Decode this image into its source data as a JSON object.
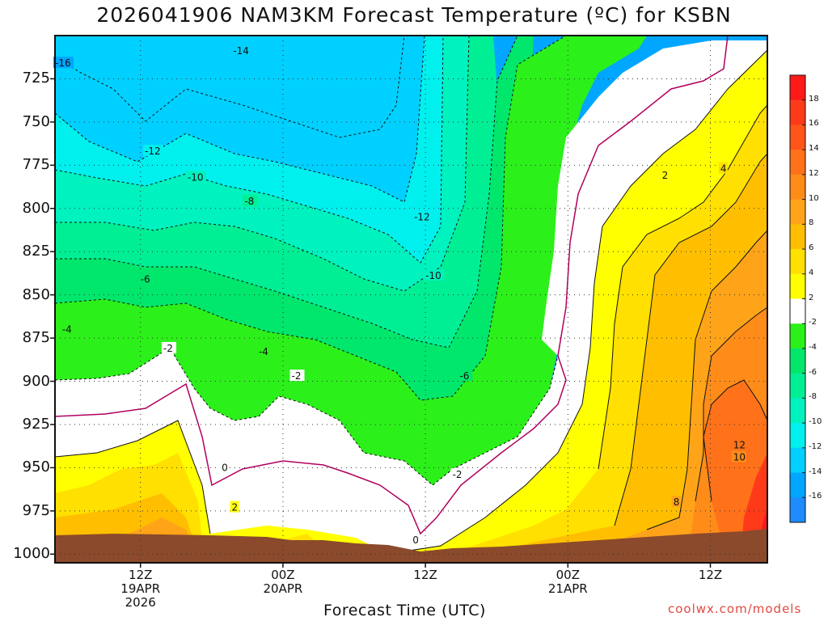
{
  "title": "2026041906 NAM3KM Forecast Temperature (ºC) for KSBN",
  "xlabel": "Forecast Time (UTC)",
  "credit": "coolwx.com/models",
  "colors": {
    "ground": "#8b4a2b",
    "freezing_line": "#b0005f",
    "contour_line": "#111111",
    "grid": "#333333"
  },
  "chart_data": {
    "type": "heatmap",
    "title": "2026041906 NAM3KM Forecast Temperature (ºC) for KSBN",
    "xlabel": "Forecast Time (UTC)",
    "ylabel": "",
    "x_range_hours": [
      -6,
      44
    ],
    "x_ticks": [
      {
        "hour": 0,
        "lines": [
          "12Z",
          "19APR",
          "2026"
        ]
      },
      {
        "hour": 10,
        "lines": [
          "00Z",
          "20APR"
        ]
      },
      {
        "hour": 20,
        "lines": [
          "12Z"
        ]
      },
      {
        "hour": 30,
        "lines": [
          "00Z",
          "21APR"
        ]
      },
      {
        "hour": 40,
        "lines": [
          "12Z"
        ]
      }
    ],
    "y_axis": "pressure (hPa), inverted",
    "y_range": [
      1005,
      700
    ],
    "y_ticks": [
      725,
      750,
      775,
      800,
      825,
      850,
      875,
      900,
      925,
      950,
      975,
      1000
    ],
    "grid": true,
    "colorbar": {
      "position": "right",
      "levels": [
        -16,
        -14,
        -12,
        -10,
        -8,
        -6,
        -4,
        -2,
        2,
        4,
        6,
        8,
        10,
        12,
        14,
        16,
        18
      ],
      "bins": [
        {
          "low": null,
          "high": -16,
          "color": "#1e8cff"
        },
        {
          "low": -16,
          "high": -14,
          "color": "#00a6ff"
        },
        {
          "low": -14,
          "high": -12,
          "color": "#00d0ff"
        },
        {
          "low": -12,
          "high": -10,
          "color": "#00f0ee"
        },
        {
          "low": -10,
          "high": -8,
          "color": "#00f2be"
        },
        {
          "low": -8,
          "high": -6,
          "color": "#00ef94"
        },
        {
          "low": -6,
          "high": -4,
          "color": "#00e76c"
        },
        {
          "low": -4,
          "high": -2,
          "color": "#2cf01a"
        },
        {
          "low": -2,
          "high": 2,
          "color": "#ffffff"
        },
        {
          "low": 2,
          "high": 4,
          "color": "#ffff00"
        },
        {
          "low": 4,
          "high": 6,
          "color": "#ffe000"
        },
        {
          "low": 6,
          "high": 8,
          "color": "#ffbf00"
        },
        {
          "low": 8,
          "high": 10,
          "color": "#ffa419"
        },
        {
          "low": 10,
          "high": 12,
          "color": "#ff8c19"
        },
        {
          "low": 12,
          "high": 14,
          "color": "#ff7219"
        },
        {
          "low": 14,
          "high": 16,
          "color": "#ff5519"
        },
        {
          "low": 16,
          "high": 18,
          "color": "#ff3a19"
        },
        {
          "low": 18,
          "high": null,
          "color": "#ff1a1a"
        }
      ]
    },
    "contour_labels": [
      {
        "value": -16,
        "hour": -6.0,
        "p": 716
      },
      {
        "value": -14,
        "hour": 6.5,
        "p": 709
      },
      {
        "value": -12,
        "hour": 0.3,
        "p": 767
      },
      {
        "value": -12,
        "hour": 19.2,
        "p": 805
      },
      {
        "value": -10,
        "hour": 3.3,
        "p": 782
      },
      {
        "value": -10,
        "hour": 20.0,
        "p": 839
      },
      {
        "value": -8,
        "hour": 7.3,
        "p": 796
      },
      {
        "value": -6,
        "hour": 0.0,
        "p": 841
      },
      {
        "value": -6,
        "hour": 22.4,
        "p": 897
      },
      {
        "value": -4,
        "hour": -5.5,
        "p": 870
      },
      {
        "value": -4,
        "hour": 8.3,
        "p": 883
      },
      {
        "value": -2,
        "hour": 1.6,
        "p": 881
      },
      {
        "value": -2,
        "hour": 10.6,
        "p": 897
      },
      {
        "value": -2,
        "hour": 21.9,
        "p": 954
      },
      {
        "value": 0,
        "hour": 5.7,
        "p": 950
      },
      {
        "value": 0,
        "hour": 19.1,
        "p": 992
      },
      {
        "value": 2,
        "hour": 6.4,
        "p": 973
      },
      {
        "value": 2,
        "hour": 36.6,
        "p": 781
      },
      {
        "value": 4,
        "hour": 40.7,
        "p": 777
      },
      {
        "value": 8,
        "hour": 37.4,
        "p": 970
      },
      {
        "value": 10,
        "hour": 41.6,
        "p": 944
      },
      {
        "value": 12,
        "hour": 41.6,
        "p": 937
      }
    ]
  }
}
